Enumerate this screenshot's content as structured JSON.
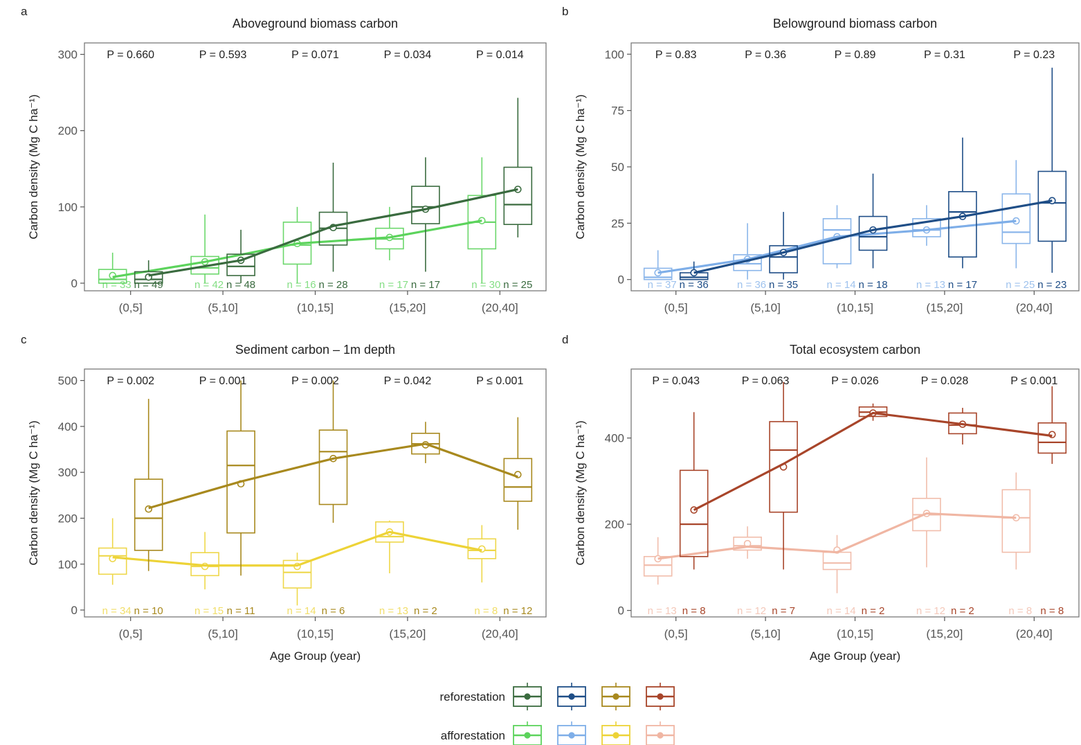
{
  "legend": {
    "rows": [
      {
        "label": "reforestation",
        "colors": [
          "#3a6b3f",
          "#1f4e87",
          "#a8891e",
          "#a8452a"
        ]
      },
      {
        "label": "afforestation",
        "colors": [
          "#5cd35c",
          "#7eaee8",
          "#edd337",
          "#f0b6a3"
        ]
      }
    ]
  },
  "chart_data": [
    {
      "panel": "a",
      "type": "boxplot",
      "title": "Aboveground biomass carbon",
      "ylabel": "Carbon density (Mg C ha⁻¹)",
      "xlabel": "",
      "categories": [
        "(0,5]",
        "(5,10]",
        "(10,15]",
        "(15,20]",
        "(20,40]"
      ],
      "ylim": [
        -10,
        315
      ],
      "yticks": [
        0,
        100,
        200,
        300
      ],
      "p_values": [
        "P = 0.660",
        "P = 0.593",
        "P = 0.071",
        "P = 0.034",
        "P = 0.014"
      ],
      "series": [
        {
          "name": "afforestation",
          "color": "#5cd35c",
          "n": [
            "n = 33",
            "n = 42",
            "n = 16",
            "n = 17",
            "n = 30"
          ],
          "boxes": [
            {
              "low": 0,
              "q1": 0,
              "median": 5,
              "q3": 18,
              "high": 40,
              "mean": 10
            },
            {
              "low": 0,
              "q1": 12,
              "median": 20,
              "q3": 35,
              "high": 90,
              "mean": 28
            },
            {
              "low": 0,
              "q1": 25,
              "median": 50,
              "q3": 80,
              "high": 100,
              "mean": 52
            },
            {
              "low": 30,
              "q1": 45,
              "median": 58,
              "q3": 72,
              "high": 100,
              "mean": 60
            },
            {
              "low": 0,
              "q1": 45,
              "median": 80,
              "q3": 115,
              "high": 165,
              "mean": 82
            }
          ],
          "line": [
            8,
            28,
            52,
            60,
            82
          ]
        },
        {
          "name": "reforestation",
          "color": "#3a6b3f",
          "n": [
            "n = 49",
            "n = 48",
            "n = 28",
            "n = 17",
            "n = 25"
          ],
          "boxes": [
            {
              "low": 0,
              "q1": 0,
              "median": 5,
              "q3": 15,
              "high": 30,
              "mean": 8
            },
            {
              "low": 0,
              "q1": 10,
              "median": 22,
              "q3": 38,
              "high": 70,
              "mean": 30
            },
            {
              "low": 15,
              "q1": 50,
              "median": 72,
              "q3": 93,
              "high": 158,
              "mean": 73
            },
            {
              "low": 15,
              "q1": 78,
              "median": 100,
              "q3": 127,
              "high": 165,
              "mean": 97
            },
            {
              "low": 60,
              "q1": 77,
              "median": 103,
              "q3": 152,
              "high": 243,
              "mean": 123
            }
          ],
          "line": [
            10,
            30,
            75,
            97,
            123
          ]
        }
      ]
    },
    {
      "panel": "b",
      "type": "boxplot",
      "title": "Belowground biomass carbon",
      "ylabel": "Carbon density (Mg C ha⁻¹)",
      "xlabel": "",
      "categories": [
        "(0,5]",
        "(5,10]",
        "(10,15]",
        "(15,20]",
        "(20,40]"
      ],
      "ylim": [
        -5,
        105
      ],
      "yticks": [
        0,
        25,
        50,
        75,
        100
      ],
      "p_values": [
        "P = 0.83",
        "P = 0.36",
        "P = 0.89",
        "P = 0.31",
        "P = 0.23"
      ],
      "series": [
        {
          "name": "afforestation",
          "color": "#7eaee8",
          "n": [
            "n = 37",
            "n = 36",
            "n = 14",
            "n = 13",
            "n = 25"
          ],
          "boxes": [
            {
              "low": 0,
              "q1": 0,
              "median": 1,
              "q3": 5,
              "high": 13,
              "mean": 3
            },
            {
              "low": 0,
              "q1": 4,
              "median": 7,
              "q3": 11,
              "high": 25,
              "mean": 9
            },
            {
              "low": 5,
              "q1": 7,
              "median": 22,
              "q3": 27,
              "high": 33,
              "mean": 19
            },
            {
              "low": 15,
              "q1": 19,
              "median": 22,
              "q3": 27,
              "high": 33,
              "mean": 22
            },
            {
              "low": 5,
              "q1": 16,
              "median": 21,
              "q3": 38,
              "high": 53,
              "mean": 26
            }
          ],
          "line": [
            3,
            9,
            19,
            22,
            26
          ]
        },
        {
          "name": "reforestation",
          "color": "#1f4e87",
          "n": [
            "n = 36",
            "n = 35",
            "n = 18",
            "n = 17",
            "n = 23"
          ],
          "boxes": [
            {
              "low": 0,
              "q1": 0,
              "median": 1,
              "q3": 3,
              "high": 8,
              "mean": 3
            },
            {
              "low": 0,
              "q1": 3,
              "median": 10,
              "q3": 15,
              "high": 30,
              "mean": 12
            },
            {
              "low": 5,
              "q1": 13,
              "median": 19,
              "q3": 28,
              "high": 47,
              "mean": 22
            },
            {
              "low": 5,
              "q1": 10,
              "median": 30,
              "q3": 39,
              "high": 63,
              "mean": 28
            },
            {
              "low": 3,
              "q1": 17,
              "median": 34,
              "q3": 48,
              "high": 94,
              "mean": 35
            }
          ],
          "line": [
            3,
            12,
            22,
            28,
            35
          ]
        }
      ]
    },
    {
      "panel": "c",
      "type": "boxplot",
      "title": "Sediment carbon – 1m depth",
      "ylabel": "Carbon density (Mg C ha⁻¹)",
      "xlabel": "Age Group (year)",
      "categories": [
        "(0,5]",
        "(5,10]",
        "(10,15]",
        "(15,20]",
        "(20,40]"
      ],
      "ylim": [
        -15,
        525
      ],
      "yticks": [
        0,
        100,
        200,
        300,
        400,
        500
      ],
      "p_values": [
        "P = 0.002",
        "P = 0.001",
        "P = 0.002",
        "P = 0.042",
        "P ≤ 0.001"
      ],
      "series": [
        {
          "name": "afforestation",
          "color": "#edd337",
          "n": [
            "n = 34",
            "n = 15",
            "n = 14",
            "n = 13",
            "n = 8"
          ],
          "boxes": [
            {
              "low": 55,
              "q1": 78,
              "median": 118,
              "q3": 135,
              "high": 200,
              "mean": 112
            },
            {
              "low": 45,
              "q1": 75,
              "median": 95,
              "q3": 125,
              "high": 170,
              "mean": 95
            },
            {
              "low": 10,
              "q1": 48,
              "median": 82,
              "q3": 108,
              "high": 125,
              "mean": 95
            },
            {
              "low": 80,
              "q1": 148,
              "median": 160,
              "q3": 192,
              "high": 195,
              "mean": 170
            },
            {
              "low": 60,
              "q1": 112,
              "median": 130,
              "q3": 155,
              "high": 185,
              "mean": 133
            }
          ],
          "line": [
            115,
            97,
            97,
            170,
            130
          ]
        },
        {
          "name": "reforestation",
          "color": "#a8891e",
          "n": [
            "n = 10",
            "n = 11",
            "n = 6",
            "n = 2",
            "n = 12"
          ],
          "boxes": [
            {
              "low": 85,
              "q1": 130,
              "median": 200,
              "q3": 285,
              "high": 460,
              "mean": 220
            },
            {
              "low": 75,
              "q1": 168,
              "median": 315,
              "q3": 390,
              "high": 500,
              "mean": 275
            },
            {
              "low": 190,
              "q1": 230,
              "median": 345,
              "q3": 392,
              "high": 500,
              "mean": 330
            },
            {
              "low": 320,
              "q1": 340,
              "median": 362,
              "q3": 385,
              "high": 410,
              "mean": 360
            },
            {
              "low": 175,
              "q1": 237,
              "median": 268,
              "q3": 330,
              "high": 420,
              "mean": 295
            }
          ],
          "line": [
            222,
            280,
            330,
            362,
            290
          ]
        }
      ]
    },
    {
      "panel": "d",
      "type": "boxplot",
      "title": "Total ecosystem carbon",
      "ylabel": "Carbon density (Mg C ha⁻¹)",
      "xlabel": "Age Group (year)",
      "categories": [
        "(0,5]",
        "(5,10]",
        "(10,15]",
        "(15,20]",
        "(20,40]"
      ],
      "ylim": [
        -15,
        560
      ],
      "yticks": [
        0,
        200,
        400
      ],
      "p_values": [
        "P = 0.043",
        "P = 0.063",
        "P = 0.026",
        "P = 0.028",
        "P ≤ 0.001"
      ],
      "series": [
        {
          "name": "afforestation",
          "color": "#f0b6a3",
          "n": [
            "n = 13",
            "n = 12",
            "n = 14",
            "n = 12",
            "n = 8"
          ],
          "boxes": [
            {
              "low": 60,
              "q1": 80,
              "median": 105,
              "q3": 125,
              "high": 170,
              "mean": 120
            },
            {
              "low": 120,
              "q1": 140,
              "median": 150,
              "q3": 170,
              "high": 195,
              "mean": 155
            },
            {
              "low": 40,
              "q1": 95,
              "median": 110,
              "q3": 135,
              "high": 175,
              "mean": 140
            },
            {
              "low": 100,
              "q1": 185,
              "median": 222,
              "q3": 260,
              "high": 355,
              "mean": 225
            },
            {
              "low": 95,
              "q1": 135,
              "median": 215,
              "q3": 280,
              "high": 320,
              "mean": 215
            }
          ],
          "line": [
            120,
            148,
            135,
            225,
            215
          ]
        },
        {
          "name": "reforestation",
          "color": "#a8452a",
          "n": [
            "n = 8",
            "n = 7",
            "n = 2",
            "n = 2",
            "n = 8"
          ],
          "boxes": [
            {
              "low": 95,
              "q1": 125,
              "median": 200,
              "q3": 325,
              "high": 460,
              "mean": 233
            },
            {
              "low": 95,
              "q1": 228,
              "median": 372,
              "q3": 438,
              "high": 530,
              "mean": 333
            },
            {
              "low": 440,
              "q1": 450,
              "median": 460,
              "q3": 472,
              "high": 480,
              "mean": 458
            },
            {
              "low": 385,
              "q1": 410,
              "median": 430,
              "q3": 458,
              "high": 470,
              "mean": 432
            },
            {
              "low": 340,
              "q1": 365,
              "median": 390,
              "q3": 435,
              "high": 520,
              "mean": 408
            }
          ],
          "line": [
            233,
            340,
            458,
            432,
            405
          ]
        }
      ]
    }
  ]
}
